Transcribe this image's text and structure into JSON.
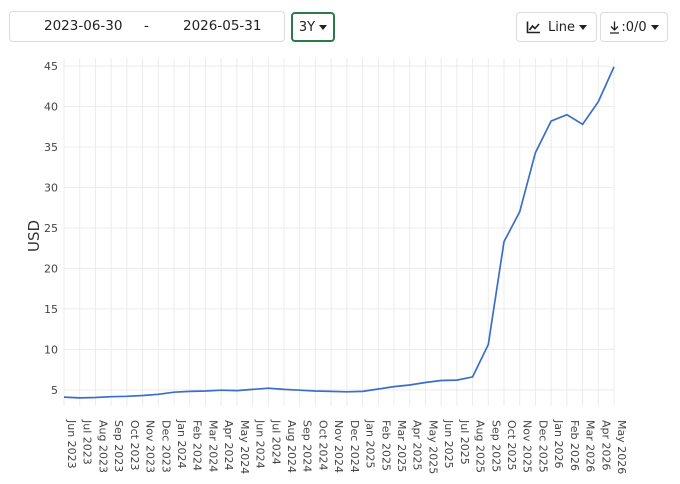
{
  "controls": {
    "date_start": "2023-06-30",
    "date_separator": "-",
    "date_end": "2026-05-31",
    "range_label": "3Y",
    "chart_type_label": "Line",
    "download_label": ":0/0",
    "icons": {
      "chart_type": "line-chart-icon",
      "range_caret": "chevron-down-icon",
      "download": "download-icon"
    }
  },
  "colors": {
    "series": "#3a6fc9",
    "range_border": "#2a7a4a",
    "grid": "#ececec"
  },
  "chart_data": {
    "type": "line",
    "ylabel": "USD",
    "xlabel": "",
    "ylim": [
      3,
      46
    ],
    "yticks": [
      5,
      10,
      15,
      20,
      25,
      30,
      35,
      40,
      45
    ],
    "grid": true,
    "legend": "none",
    "x": [
      "Jun 2023",
      "Jul 2023",
      "Aug 2023",
      "Sep 2023",
      "Oct 2023",
      "Nov 2023",
      "Dec 2023",
      "Jan 2024",
      "Feb 2024",
      "Mar 2024",
      "Apr 2024",
      "May 2024",
      "Jun 2024",
      "Jul 2024",
      "Aug 2024",
      "Sep 2024",
      "Oct 2024",
      "Nov 2024",
      "Dec 2024",
      "Jan 2025",
      "Feb 2025",
      "Mar 2025",
      "Apr 2025",
      "May 2025",
      "Jun 2025",
      "Jul 2025",
      "Aug 2025",
      "Sep 2025",
      "Oct 2025",
      "Nov 2025",
      "Dec 2025",
      "Jan 2026",
      "Feb 2026",
      "Mar 2026",
      "Apr 2026",
      "May 2026"
    ],
    "series": [
      {
        "values": [
          4.1,
          4.0,
          4.05,
          4.15,
          4.2,
          4.3,
          4.45,
          4.7,
          4.8,
          4.85,
          4.95,
          4.9,
          5.05,
          5.2,
          5.05,
          4.95,
          4.85,
          4.8,
          4.75,
          4.8,
          5.1,
          5.4,
          5.6,
          5.9,
          6.15,
          6.2,
          6.6,
          10.6,
          23.3,
          27.0,
          34.3,
          38.2,
          39.0,
          37.8,
          40.6,
          44.9
        ]
      }
    ]
  }
}
